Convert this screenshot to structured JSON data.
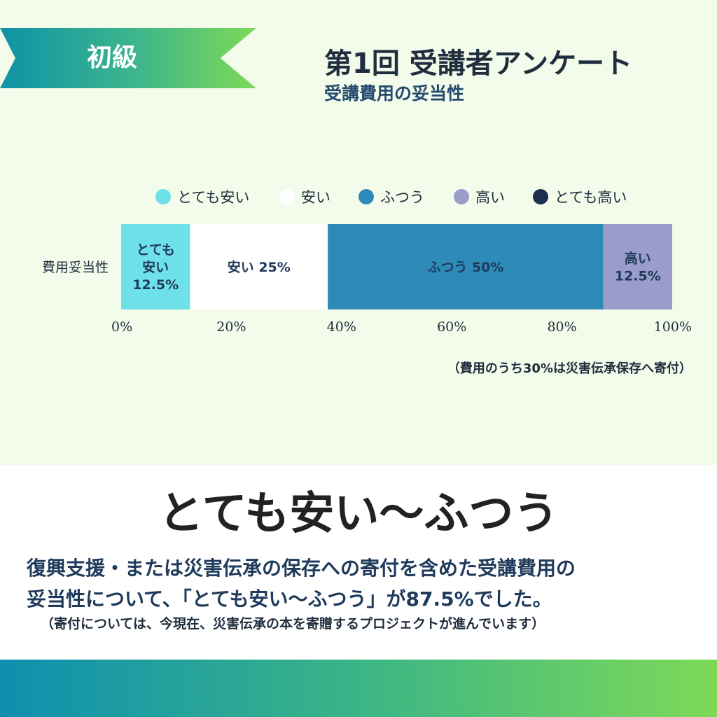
{
  "badge": {
    "label": "初級"
  },
  "header": {
    "title": "第1回 受講者アンケート",
    "subtitle": "受講費用の妥当性"
  },
  "chart_data": {
    "type": "bar",
    "orientation": "horizontal",
    "stacked": "100%",
    "categories": [
      "費用妥当性"
    ],
    "series": [
      {
        "name": "とても安い",
        "values": [
          12.5
        ],
        "color": "#6de0e8",
        "label": [
          "とても",
          "安い",
          "12.5%"
        ]
      },
      {
        "name": "安い",
        "values": [
          25
        ],
        "color": "#ffffff",
        "label": [
          "安い 25%"
        ]
      },
      {
        "name": "ふつう",
        "values": [
          50
        ],
        "color": "#2e8ab8",
        "label": [
          "ふつう 50%"
        ]
      },
      {
        "name": "高い",
        "values": [
          12.5
        ],
        "color": "#9a9cc9",
        "label": [
          "高い",
          "12.5%"
        ]
      },
      {
        "name": "とても高い",
        "values": [
          0
        ],
        "color": "#1c2f4f",
        "label": []
      }
    ],
    "xlim": [
      0,
      100
    ],
    "xticks": [
      "0%",
      "20%",
      "40%",
      "60%",
      "80%",
      "100%"
    ],
    "legend_position": "top"
  },
  "note": "（費用のうち30%は災害伝承保存へ寄付）",
  "headline": "とても安い〜ふつう",
  "body": {
    "line1": "復興支援・または災害伝承の保存への寄付を含めた受講費用の",
    "line2": "妥当性について、「とても安い〜ふつう」が87.5%でした。"
  },
  "small_note": "（寄付については、今現在、災害伝承の本を寄贈するプロジェクトが進んでいます）"
}
